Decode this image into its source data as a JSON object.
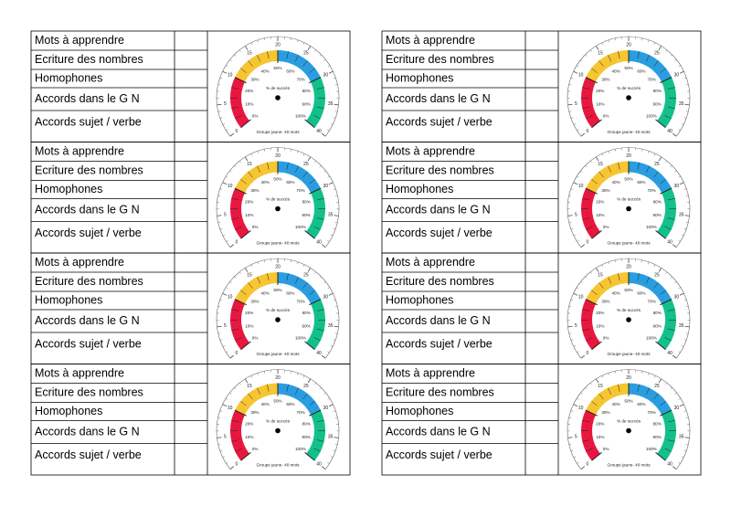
{
  "cards": [
    {
      "rows": [
        "Mots à apprendre",
        "Ecriture des nombres",
        "Homophones",
        "Accords dans le G N",
        "Accords sujet / verbe"
      ]
    },
    {
      "rows": [
        "Mots à apprendre",
        "Ecriture des nombres",
        "Homophones",
        "Accords dans le G N",
        "Accords sujet / verbe"
      ]
    },
    {
      "rows": [
        "Mots à apprendre",
        "Ecriture des nombres",
        "Homophones",
        "Accords dans le G N",
        "Accords sujet / verbe"
      ]
    },
    {
      "rows": [
        "Mots à apprendre",
        "Ecriture des nombres",
        "Homophones",
        "Accords dans le G N",
        "Accords sujet / verbe"
      ]
    },
    {
      "rows": [
        "Mots à apprendre",
        "Ecriture des nombres",
        "Homophones",
        "Accords dans le G N",
        "Accords sujet / verbe"
      ]
    },
    {
      "rows": [
        "Mots à apprendre",
        "Ecriture des nombres",
        "Homophones",
        "Accords dans le G N",
        "Accords sujet / verbe"
      ]
    },
    {
      "rows": [
        "Mots à apprendre",
        "Ecriture des nombres",
        "Homophones",
        "Accords dans le G N",
        "Accords sujet / verbe"
      ]
    },
    {
      "rows": [
        "Mots à apprendre",
        "Ecriture des nombres",
        "Homophones",
        "Accords dans le G N",
        "Accords sujet / verbe"
      ]
    }
  ],
  "gauge": {
    "outer_labels": [
      "0",
      "5",
      "10",
      "15",
      "20",
      "25",
      "30",
      "35",
      "40"
    ],
    "inner_labels": [
      "0%",
      "10%",
      "20%",
      "30%",
      "40%",
      "50%",
      "60%",
      "70%",
      "80%",
      "90%",
      "100%"
    ],
    "caption": "% de succès",
    "footer": "Groupe jaune- 40 mots"
  }
}
